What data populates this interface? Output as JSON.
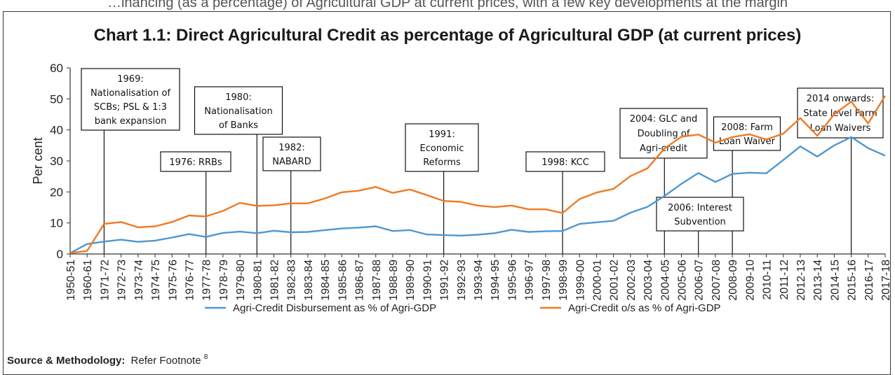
{
  "header_text": "…inancing (as a percentage) of Agricultural GDP at current prices, with a few key developments at the margin",
  "chart_data": {
    "type": "line",
    "title": "Chart 1.1: Direct Agricultural Credit as percentage of Agricultural GDP (at current prices)",
    "ylabel": "Per cent",
    "xlabel": "",
    "ylim": [
      0,
      60
    ],
    "yticks": [
      0,
      10,
      20,
      30,
      40,
      50,
      60
    ],
    "grid": false,
    "legend_position": "bottom",
    "categories": [
      "1950-51",
      "1960-61",
      "1971-72",
      "1972-73",
      "1973-74",
      "1974-75",
      "1975-76",
      "1976-77",
      "1977-78",
      "1978-79",
      "1979-80",
      "1980-81",
      "1981-82",
      "1982-83",
      "1983-84",
      "1984-85",
      "1985-86",
      "1986-87",
      "1987-88",
      "1988-89",
      "1989-90",
      "1990-91",
      "1991-92",
      "1992-93",
      "1993-94",
      "1994-95",
      "1995-96",
      "1996-97",
      "1997-98",
      "1998-99",
      "1999-00",
      "2000-01",
      "2001-02",
      "2002-03",
      "2003-04",
      "2004-05",
      "2005-06",
      "2006-07",
      "2007-08",
      "2008-09",
      "2009-10",
      "2010-11",
      "2011-12",
      "2012-13",
      "2013-14",
      "2014-15",
      "2015-16",
      "2016-17",
      "2017-18"
    ],
    "series": [
      {
        "name": "Agri-Credit Disbursement as % of Agri-GDP",
        "color": "#4f97d0",
        "values": [
          0.3,
          3.2,
          4.0,
          4.6,
          3.9,
          4.3,
          5.3,
          6.4,
          5.5,
          6.8,
          7.2,
          6.7,
          7.5,
          7.0,
          7.1,
          7.7,
          8.2,
          8.5,
          8.9,
          7.4,
          7.7,
          6.3,
          6.1,
          5.9,
          6.2,
          6.7,
          7.8,
          7.1,
          7.3,
          7.4,
          9.7,
          10.2,
          10.7,
          13.3,
          15.2,
          18.7,
          22.6,
          26.1,
          23.2,
          25.8,
          26.2,
          26.0,
          30.3,
          34.7,
          31.4,
          35.0,
          37.7,
          34.1,
          31.7
        ]
      },
      {
        "name": "Agri-Credit o/s as % of Agri-GDP",
        "color": "#ee7a24",
        "values": [
          0.3,
          1.0,
          9.7,
          10.3,
          8.6,
          8.9,
          10.3,
          12.4,
          12.1,
          13.9,
          16.5,
          15.5,
          15.7,
          16.3,
          16.3,
          17.9,
          19.9,
          20.4,
          21.6,
          19.7,
          20.8,
          19.0,
          17.1,
          16.8,
          15.6,
          15.1,
          15.6,
          14.4,
          14.4,
          13.2,
          17.7,
          19.8,
          21.0,
          25.1,
          27.6,
          34.0,
          37.8,
          38.5,
          35.9,
          37.7,
          38.6,
          36.9,
          38.8,
          43.8,
          38.1,
          45.1,
          49.1,
          42.1,
          51.0
        ]
      }
    ],
    "annotations": [
      {
        "text": [
          "1969:",
          "Nationalisation of",
          "SCBs; PSL & 1:3",
          "bank expansion"
        ],
        "category": "1971-72"
      },
      {
        "text": [
          "1976: RRBs"
        ],
        "category": "1977-78"
      },
      {
        "text": [
          "1980:",
          "Nationalisation",
          "of Banks"
        ],
        "category": "1980-81"
      },
      {
        "text": [
          "1982:",
          "NABARD"
        ],
        "category": "1982-83"
      },
      {
        "text": [
          "1991:",
          "Economic",
          "Reforms"
        ],
        "category": "1991-92"
      },
      {
        "text": [
          "1998: KCC"
        ],
        "category": "1998-99"
      },
      {
        "text": [
          "2004: GLC and",
          "Doubling of",
          "Agri-credit"
        ],
        "category": "2004-05"
      },
      {
        "text": [
          "2006: Interest",
          "Subvention"
        ],
        "category": "2006-07"
      },
      {
        "text": [
          "2008: Farm",
          "Loan Waiver"
        ],
        "category": "2008-09"
      },
      {
        "text": [
          "2014 onwards:",
          "State level Farm",
          "Loan Waivers"
        ],
        "category": "2015-16"
      }
    ]
  },
  "source": {
    "label": "Source & Methodology:",
    "text": "Refer Footnote",
    "sup": "8"
  }
}
